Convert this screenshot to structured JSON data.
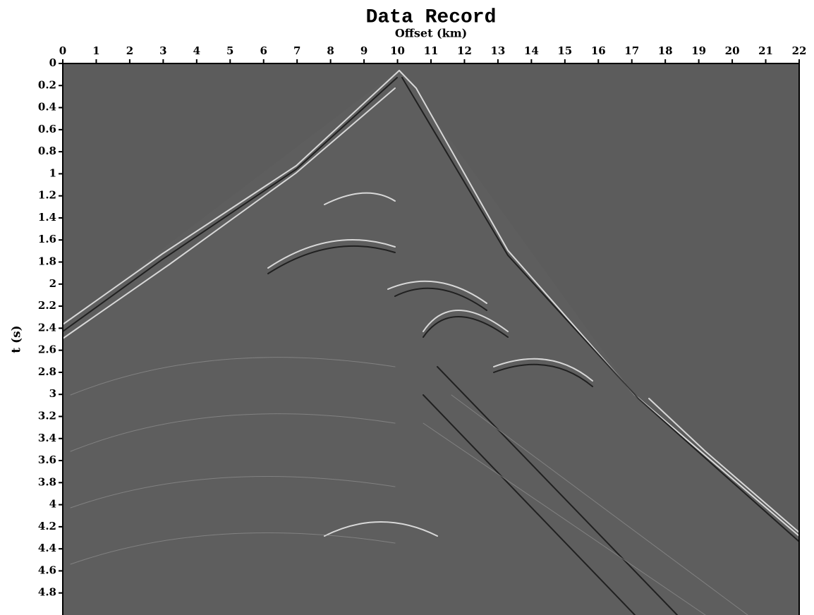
{
  "chart_data": {
    "type": "image",
    "title": "Data Record",
    "xlabel": "Offset (km)",
    "ylabel": "t (s)",
    "xlim": [
      0,
      22
    ],
    "xticks": [
      0,
      1,
      2,
      3,
      4,
      5,
      6,
      7,
      8,
      9,
      10,
      11,
      12,
      13,
      14,
      15,
      16,
      17,
      18,
      19,
      20,
      21,
      22
    ],
    "ylim": [
      0,
      5
    ],
    "yticks": [
      0,
      0.2,
      0.4,
      0.6,
      0.8,
      1,
      1.2,
      1.4,
      1.6,
      1.8,
      2,
      2.2,
      2.4,
      2.6,
      2.8,
      3,
      3.2,
      3.4,
      3.6,
      3.8,
      4,
      4.2,
      4.4,
      4.6,
      4.8
    ],
    "y_inverted": true,
    "xaxis_position": "top",
    "background": "#5c5c5c"
  }
}
